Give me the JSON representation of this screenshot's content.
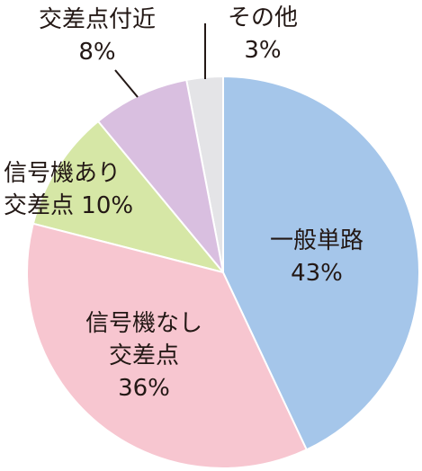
{
  "chart_data": {
    "type": "pie",
    "categories": [
      "一般単路",
      "信号機なし交差点",
      "信号機あり交差点",
      "交差点付近",
      "その他"
    ],
    "values": [
      43,
      36,
      10,
      8,
      3
    ],
    "value_labels": [
      "43%",
      "36%",
      "10%",
      "8%",
      "3%"
    ],
    "colors": [
      "#a5c6ea",
      "#f7c6d0",
      "#d6e7a6",
      "#d9bfe0",
      "#e4e4e7"
    ]
  }
}
